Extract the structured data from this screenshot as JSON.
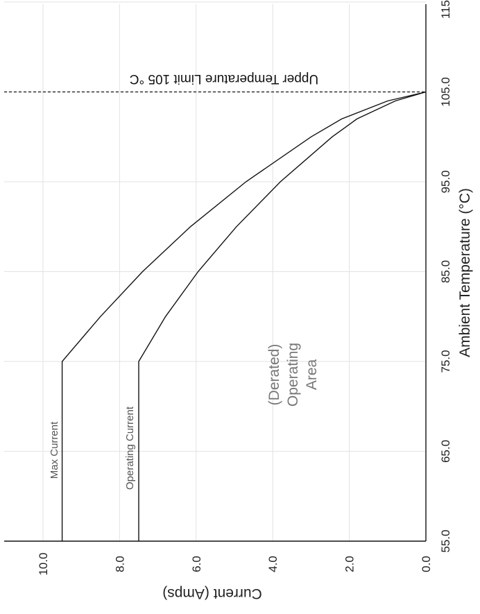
{
  "chart_data": {
    "type": "line",
    "orientation": "rotated-90",
    "xlabel": "Ambient Temperature (°C)",
    "ylabel": "Current (Amps)",
    "xlim": [
      55,
      115
    ],
    "ylim": [
      0,
      11
    ],
    "x_ticks": [
      "55.0",
      "65.0",
      "75.0",
      "85.0",
      "95.0",
      "105.0",
      "115"
    ],
    "y_ticks": [
      "0.0",
      "2.0",
      "4.0",
      "6.0",
      "8.0",
      "10.0"
    ],
    "grid": true,
    "series": [
      {
        "name": "Max Current",
        "x": [
          55,
          75,
          80,
          85,
          90,
          95,
          100,
          102,
          104,
          105
        ],
        "y": [
          9.5,
          9.5,
          8.5,
          7.4,
          6.15,
          4.7,
          3.0,
          2.2,
          1.0,
          0.0
        ]
      },
      {
        "name": "Operating Current",
        "x": [
          55,
          75,
          80,
          85,
          90,
          95,
          100,
          102,
          104,
          105
        ],
        "y": [
          7.5,
          7.5,
          6.8,
          5.95,
          4.95,
          3.8,
          2.45,
          1.8,
          0.8,
          0.0
        ]
      }
    ],
    "annotations": {
      "limit_x": 105,
      "limit_text": "Upper Temperature Limit 105 °C",
      "region_text": [
        "(Derated)",
        "Operating",
        "Area"
      ]
    }
  }
}
